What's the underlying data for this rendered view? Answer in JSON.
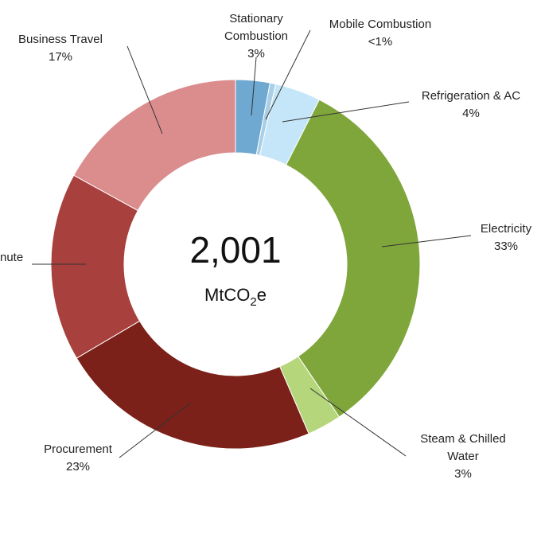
{
  "chart_data": {
    "type": "pie",
    "variant": "donut",
    "total_value": "2,001",
    "total_unit": "MtCO2e",
    "legend": "none (callout labels)",
    "slices": [
      {
        "name": "Stationary Combustion",
        "value": 3,
        "value_label": "3%",
        "color": "#6fa8d0",
        "label_lines": [
          "Stationary",
          "Combustion",
          "3%"
        ]
      },
      {
        "name": "Mobile Combustion",
        "value": 0.5,
        "value_label": "<1%",
        "color": "#a9cfe6",
        "label_lines": [
          "Mobile Combustion",
          "<1%"
        ]
      },
      {
        "name": "Refrigeration & AC",
        "value": 4,
        "value_label": "4%",
        "color": "#c5e6f8",
        "label_lines": [
          "Refrigeration & AC",
          "4%"
        ]
      },
      {
        "name": "Electricity",
        "value": 33,
        "value_label": "33%",
        "color": "#7fa63a",
        "label_lines": [
          "Electricity",
          "33%"
        ]
      },
      {
        "name": "Steam & Chilled Water",
        "value": 3,
        "value_label": "3%",
        "color": "#b5d67a",
        "label_lines": [
          "Steam & Chilled",
          "Water",
          "3%"
        ]
      },
      {
        "name": "Procurement",
        "value": 23,
        "value_label": "23%",
        "color": "#7b2119",
        "label_lines": [
          "Procurement",
          "23%"
        ]
      },
      {
        "name": "Commute",
        "value": 16.5,
        "value_label": "",
        "color": "#a8403d",
        "label_lines": [
          "nute"
        ]
      },
      {
        "name": "Business Travel",
        "value": 17,
        "value_label": "17%",
        "color": "#db8c8c",
        "label_lines": [
          "Business Travel",
          "17%"
        ]
      }
    ]
  }
}
